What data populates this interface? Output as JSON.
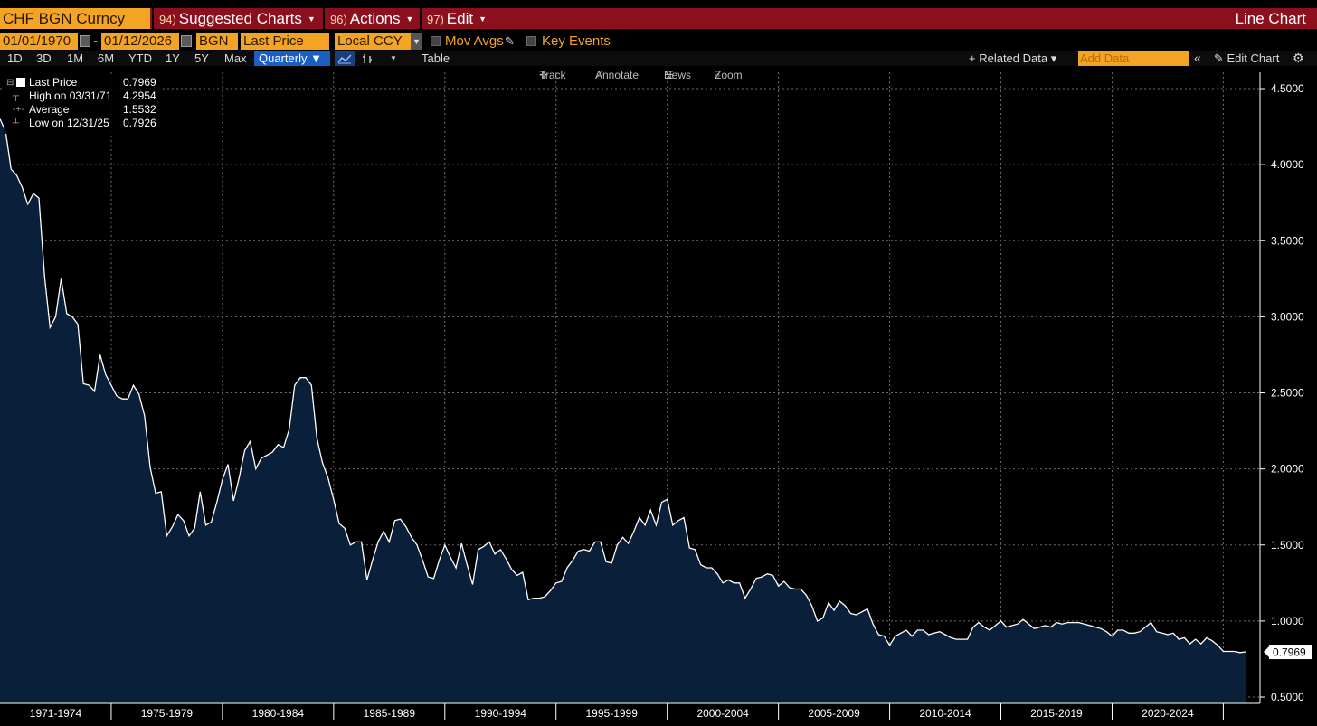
{
  "header": {
    "security": "CHF BGN Curncy",
    "menus": [
      {
        "num": "94)",
        "label": "Suggested Charts"
      },
      {
        "num": "96)",
        "label": "Actions"
      },
      {
        "num": "97)",
        "label": "Edit"
      }
    ],
    "chart_title": "Line Chart"
  },
  "controls": {
    "start_date": "01/01/1970",
    "end_date": "01/12/2026",
    "source": "BGN",
    "field": "Last Price",
    "currency": "Local CCY",
    "mov_avgs": "Mov Avgs",
    "key_events": "Key Events",
    "periods": [
      "1D",
      "3D",
      "1M",
      "6M",
      "YTD",
      "1Y",
      "5Y",
      "Max"
    ],
    "frequency": "Quarterly ▼",
    "table": "Table",
    "related_data": "+ Related Data ▾",
    "add_data_placeholder": "Add Data",
    "edit_chart": "Edit Chart"
  },
  "tools": {
    "track": "Track",
    "annotate": "Annotate",
    "news": "News",
    "zoom": "Zoom"
  },
  "legend": [
    {
      "label": "Last Price",
      "value": "0.7969"
    },
    {
      "label": "High on 03/31/71",
      "value": "4.2954"
    },
    {
      "label": "Average",
      "value": "1.5532"
    },
    {
      "label": "Low on 12/31/25",
      "value": "0.7926"
    }
  ],
  "colors": {
    "accent": "#f4a424",
    "header": "#8b0f1d",
    "area_fill": "#0a1f3a",
    "line": "#ffffff",
    "selected": "#1a5fc4"
  },
  "chart_data": {
    "type": "area",
    "series": [
      {
        "name": "Last Price"
      }
    ],
    "x_range": [
      1970.0,
      2026.0
    ],
    "ylim": [
      0.5,
      4.5
    ],
    "y_ticks": [
      "0.5000",
      "1.0000",
      "1.5000",
      "2.0000",
      "2.5000",
      "3.0000",
      "3.5000",
      "4.0000",
      "4.5000"
    ],
    "y_tick_values": [
      0.5,
      1.0,
      1.5,
      2.0,
      2.5,
      3.0,
      3.5,
      4.0,
      4.5
    ],
    "x_tick_labels": [
      "1971-1974",
      "1975-1979",
      "1980-1984",
      "1985-1989",
      "1990-1994",
      "1995-1999",
      "2000-2004",
      "2005-2009",
      "2010-2014",
      "2015-2019",
      "2020-2024"
    ],
    "x_label_years": [
      1972.5,
      1977.5,
      1982.5,
      1987.5,
      1992.5,
      1997.5,
      2002.5,
      2007.5,
      2012.5,
      2017.5,
      2022.5
    ],
    "x_grid_years": [
      1975,
      1980,
      1985,
      1990,
      1995,
      2000,
      2005,
      2010,
      2015,
      2020,
      2025
    ],
    "last_label": "0.7969",
    "last_value": 0.7969,
    "grid": true,
    "points": [
      [
        1970.0,
        4.3
      ],
      [
        1970.25,
        4.22
      ],
      [
        1970.5,
        3.97
      ],
      [
        1970.75,
        3.93
      ],
      [
        1971.0,
        3.85
      ],
      [
        1971.25,
        3.74
      ],
      [
        1971.5,
        3.81
      ],
      [
        1971.75,
        3.78
      ],
      [
        1972.0,
        3.27
      ],
      [
        1972.25,
        2.93
      ],
      [
        1972.5,
        3.0
      ],
      [
        1972.75,
        3.25
      ],
      [
        1973.0,
        3.02
      ],
      [
        1973.25,
        3.0
      ],
      [
        1973.5,
        2.95
      ],
      [
        1973.75,
        2.56
      ],
      [
        1974.0,
        2.55
      ],
      [
        1974.25,
        2.51
      ],
      [
        1974.5,
        2.75
      ],
      [
        1974.75,
        2.62
      ],
      [
        1975.0,
        2.55
      ],
      [
        1975.25,
        2.48
      ],
      [
        1975.5,
        2.46
      ],
      [
        1975.75,
        2.46
      ],
      [
        1976.0,
        2.55
      ],
      [
        1976.25,
        2.49
      ],
      [
        1976.5,
        2.35
      ],
      [
        1976.75,
        2.01
      ],
      [
        1977.0,
        1.84
      ],
      [
        1977.25,
        1.85
      ],
      [
        1977.5,
        1.56
      ],
      [
        1977.75,
        1.62
      ],
      [
        1978.0,
        1.7
      ],
      [
        1978.25,
        1.66
      ],
      [
        1978.5,
        1.56
      ],
      [
        1978.75,
        1.61
      ],
      [
        1979.0,
        1.85
      ],
      [
        1979.25,
        1.63
      ],
      [
        1979.5,
        1.65
      ],
      [
        1979.75,
        1.78
      ],
      [
        1980.0,
        1.93
      ],
      [
        1980.25,
        2.03
      ],
      [
        1980.5,
        1.79
      ],
      [
        1980.75,
        1.94
      ],
      [
        1981.0,
        2.12
      ],
      [
        1981.25,
        2.18
      ],
      [
        1981.5,
        2.0
      ],
      [
        1981.75,
        2.07
      ],
      [
        1982.0,
        2.09
      ],
      [
        1982.25,
        2.11
      ],
      [
        1982.5,
        2.16
      ],
      [
        1982.75,
        2.14
      ],
      [
        1983.0,
        2.26
      ],
      [
        1983.25,
        2.55
      ],
      [
        1983.5,
        2.6
      ],
      [
        1983.75,
        2.6
      ],
      [
        1984.0,
        2.55
      ],
      [
        1984.25,
        2.2
      ],
      [
        1984.5,
        2.04
      ],
      [
        1984.75,
        1.94
      ],
      [
        1985.0,
        1.8
      ],
      [
        1985.25,
        1.64
      ],
      [
        1985.5,
        1.61
      ],
      [
        1985.75,
        1.5
      ],
      [
        1986.0,
        1.52
      ],
      [
        1986.25,
        1.52
      ],
      [
        1986.5,
        1.27
      ],
      [
        1986.75,
        1.4
      ],
      [
        1987.0,
        1.52
      ],
      [
        1987.25,
        1.59
      ],
      [
        1987.5,
        1.52
      ],
      [
        1987.75,
        1.66
      ],
      [
        1988.0,
        1.67
      ],
      [
        1988.25,
        1.62
      ],
      [
        1988.5,
        1.55
      ],
      [
        1988.75,
        1.5
      ],
      [
        1989.0,
        1.4
      ],
      [
        1989.25,
        1.29
      ],
      [
        1989.5,
        1.28
      ],
      [
        1989.75,
        1.4
      ],
      [
        1990.0,
        1.5
      ],
      [
        1990.25,
        1.42
      ],
      [
        1990.5,
        1.35
      ],
      [
        1990.75,
        1.51
      ],
      [
        1991.0,
        1.37
      ],
      [
        1991.25,
        1.24
      ],
      [
        1991.5,
        1.47
      ],
      [
        1991.75,
        1.49
      ],
      [
        1992.0,
        1.52
      ],
      [
        1992.25,
        1.44
      ],
      [
        1992.5,
        1.47
      ],
      [
        1992.75,
        1.41
      ],
      [
        1993.0,
        1.34
      ],
      [
        1993.25,
        1.3
      ],
      [
        1993.5,
        1.32
      ],
      [
        1993.75,
        1.14
      ],
      [
        1994.0,
        1.15
      ],
      [
        1994.25,
        1.15
      ],
      [
        1994.5,
        1.16
      ],
      [
        1994.75,
        1.2
      ],
      [
        1995.0,
        1.25
      ],
      [
        1995.25,
        1.26
      ],
      [
        1995.5,
        1.35
      ],
      [
        1995.75,
        1.4
      ],
      [
        1996.0,
        1.46
      ],
      [
        1996.25,
        1.47
      ],
      [
        1996.5,
        1.46
      ],
      [
        1996.75,
        1.52
      ],
      [
        1997.0,
        1.52
      ],
      [
        1997.25,
        1.39
      ],
      [
        1997.5,
        1.38
      ],
      [
        1997.75,
        1.5
      ],
      [
        1998.0,
        1.55
      ],
      [
        1998.25,
        1.51
      ],
      [
        1998.5,
        1.59
      ],
      [
        1998.75,
        1.68
      ],
      [
        1999.0,
        1.63
      ],
      [
        1999.25,
        1.73
      ],
      [
        1999.5,
        1.63
      ],
      [
        1999.75,
        1.78
      ],
      [
        2000.0,
        1.8
      ],
      [
        2000.25,
        1.63
      ],
      [
        2000.5,
        1.66
      ],
      [
        2000.75,
        1.68
      ],
      [
        2001.0,
        1.48
      ],
      [
        2001.25,
        1.47
      ],
      [
        2001.5,
        1.37
      ],
      [
        2001.75,
        1.35
      ],
      [
        2002.0,
        1.35
      ],
      [
        2002.25,
        1.31
      ],
      [
        2002.5,
        1.25
      ],
      [
        2002.75,
        1.27
      ],
      [
        2003.0,
        1.25
      ],
      [
        2003.25,
        1.25
      ],
      [
        2003.5,
        1.15
      ],
      [
        2003.75,
        1.21
      ],
      [
        2004.0,
        1.28
      ],
      [
        2004.25,
        1.29
      ],
      [
        2004.5,
        1.31
      ],
      [
        2004.75,
        1.3
      ],
      [
        2005.0,
        1.23
      ],
      [
        2005.25,
        1.26
      ],
      [
        2005.5,
        1.22
      ],
      [
        2005.75,
        1.21
      ],
      [
        2006.0,
        1.21
      ],
      [
        2006.25,
        1.17
      ],
      [
        2006.5,
        1.1
      ],
      [
        2006.75,
        1.0
      ],
      [
        2007.0,
        1.02
      ],
      [
        2007.25,
        1.12
      ],
      [
        2007.5,
        1.07
      ],
      [
        2007.75,
        1.13
      ],
      [
        2008.0,
        1.1
      ],
      [
        2008.25,
        1.05
      ],
      [
        2008.5,
        1.04
      ],
      [
        2008.75,
        1.06
      ],
      [
        2009.0,
        1.08
      ],
      [
        2009.25,
        0.98
      ],
      [
        2009.5,
        0.91
      ],
      [
        2009.75,
        0.9
      ],
      [
        2010.0,
        0.84
      ],
      [
        2010.25,
        0.9
      ],
      [
        2010.5,
        0.92
      ],
      [
        2010.75,
        0.94
      ],
      [
        2011.0,
        0.9
      ],
      [
        2011.25,
        0.94
      ],
      [
        2011.5,
        0.94
      ],
      [
        2011.75,
        0.91
      ],
      [
        2012.0,
        0.92
      ],
      [
        2012.25,
        0.93
      ],
      [
        2012.5,
        0.91
      ],
      [
        2012.75,
        0.89
      ],
      [
        2013.0,
        0.88
      ],
      [
        2013.25,
        0.88
      ],
      [
        2013.5,
        0.88
      ],
      [
        2013.75,
        0.96
      ],
      [
        2014.0,
        0.99
      ],
      [
        2014.25,
        0.96
      ],
      [
        2014.5,
        0.94
      ],
      [
        2014.75,
        0.97
      ],
      [
        2015.0,
        1.0
      ],
      [
        2015.25,
        0.96
      ],
      [
        2015.5,
        0.97
      ],
      [
        2015.75,
        0.98
      ],
      [
        2016.0,
        1.01
      ],
      [
        2016.25,
        0.98
      ],
      [
        2016.5,
        0.95
      ],
      [
        2016.75,
        0.96
      ],
      [
        2017.0,
        0.97
      ],
      [
        2017.25,
        0.96
      ],
      [
        2017.5,
        0.99
      ],
      [
        2017.75,
        0.98
      ],
      [
        2018.0,
        0.99
      ],
      [
        2018.25,
        0.99
      ],
      [
        2018.5,
        0.99
      ],
      [
        2018.75,
        0.98
      ],
      [
        2019.0,
        0.97
      ],
      [
        2019.25,
        0.96
      ],
      [
        2019.5,
        0.95
      ],
      [
        2019.75,
        0.93
      ],
      [
        2020.0,
        0.9
      ],
      [
        2020.25,
        0.94
      ],
      [
        2020.5,
        0.94
      ],
      [
        2020.75,
        0.92
      ],
      [
        2021.0,
        0.92
      ],
      [
        2021.25,
        0.93
      ],
      [
        2021.5,
        0.96
      ],
      [
        2021.75,
        0.99
      ],
      [
        2022.0,
        0.93
      ],
      [
        2022.25,
        0.92
      ],
      [
        2022.5,
        0.91
      ],
      [
        2022.75,
        0.92
      ],
      [
        2023.0,
        0.88
      ],
      [
        2023.25,
        0.89
      ],
      [
        2023.5,
        0.85
      ],
      [
        2023.75,
        0.88
      ],
      [
        2024.0,
        0.85
      ],
      [
        2024.25,
        0.89
      ],
      [
        2024.5,
        0.87
      ],
      [
        2024.75,
        0.84
      ],
      [
        2025.0,
        0.8
      ],
      [
        2025.25,
        0.8
      ],
      [
        2025.5,
        0.8
      ],
      [
        2025.75,
        0.7926
      ],
      [
        2026.0,
        0.7969
      ]
    ]
  }
}
